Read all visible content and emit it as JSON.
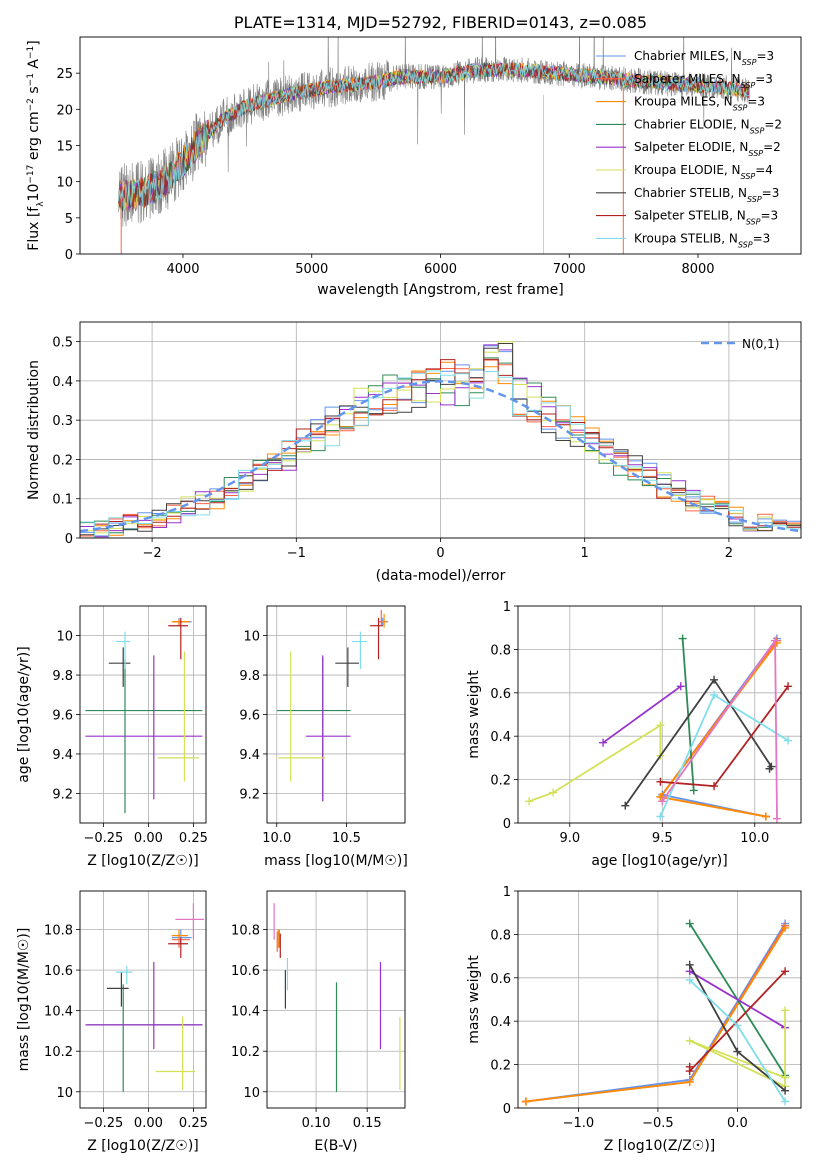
{
  "chart_data": [
    {
      "id": "spectrum",
      "type": "line",
      "title": "PLATE=1314, MJD=52792, FIBERID=0143, z=0.085",
      "xlabel": "wavelength [Angstrom, rest frame]",
      "ylabel": "Flux [f_λ10^-17 erg cm^-2 s^-1 A^-1]",
      "xlim": [
        3200,
        8800
      ],
      "ylim": [
        0,
        30
      ],
      "xticks": [
        4000,
        5000,
        6000,
        7000,
        8000
      ],
      "yticks": [
        0,
        5,
        10,
        15,
        20,
        25
      ],
      "grid": false,
      "legend_position": "top-right",
      "data_color": "#808080",
      "continuum_anchor": {
        "x": [
          3500,
          3700,
          3900,
          4100,
          4300,
          4500,
          4800,
          5100,
          5400,
          5700,
          6000,
          6300,
          6600,
          6900,
          7200,
          7500,
          7800,
          8100,
          8400
        ],
        "y": [
          8,
          8.5,
          10.5,
          15,
          18.5,
          20.5,
          22,
          23,
          23.5,
          24.5,
          24.5,
          25.5,
          25.5,
          25,
          24.5,
          24,
          23.5,
          23.2,
          22.5
        ]
      },
      "series": [
        {
          "name": "Chabrier MILES",
          "nssp": "3",
          "color": "#6495ed"
        },
        {
          "name": "Salpeter MILES",
          "nssp": "3",
          "color": "#ff6347"
        },
        {
          "name": "Kroupa MILES",
          "nssp": "3",
          "color": "#ff8c00"
        },
        {
          "name": "Chabrier ELODIE",
          "nssp": "2",
          "color": "#2e8b57"
        },
        {
          "name": "Salpeter ELODIE",
          "nssp": "2",
          "color": "#9932cc"
        },
        {
          "name": "Kroupa ELODIE",
          "nssp": "4",
          "color": "#d4e157"
        },
        {
          "name": "Chabrier STELIB",
          "nssp": "3",
          "color": "#404040"
        },
        {
          "name": "Salpeter STELIB",
          "nssp": "3",
          "color": "#b22222"
        },
        {
          "name": "Kroupa STELIB",
          "nssp": "3",
          "color": "#80deea"
        }
      ]
    },
    {
      "id": "residuals",
      "type": "line",
      "xlabel": "(data-model)/error",
      "ylabel": "Normed distribution",
      "xlim": [
        -2.5,
        2.5
      ],
      "ylim": [
        0,
        0.55
      ],
      "xticks": [
        -2,
        -1,
        0,
        1,
        2
      ],
      "yticks": [
        0.0,
        0.1,
        0.2,
        0.3,
        0.4,
        0.5
      ],
      "grid": true,
      "legend_position": "top-right",
      "reference_curve": {
        "name": "N(0,1)",
        "color": "#6495ed",
        "style": "dashed"
      },
      "bin_width": 0.1,
      "histograms": [
        {
          "color": "#6495ed",
          "phase": 0.0
        },
        {
          "color": "#ff6347",
          "phase": 1.3
        },
        {
          "color": "#ff8c00",
          "phase": 2.1
        },
        {
          "color": "#2e8b57",
          "phase": 3.7
        },
        {
          "color": "#9932cc",
          "phase": 4.4
        },
        {
          "color": "#d4e157",
          "phase": 5.2
        },
        {
          "color": "#404040",
          "phase": 6.1
        },
        {
          "color": "#b22222",
          "phase": 7.3
        },
        {
          "color": "#80deea",
          "phase": 8.6
        }
      ]
    },
    {
      "id": "age-vs-z",
      "type": "scatter",
      "xlabel": "Z [log10(Z/Z☉)]",
      "ylabel": "age [log10(age/yr)]",
      "xlim": [
        -0.38,
        0.32
      ],
      "ylim": [
        9.05,
        10.15
      ],
      "xticks": [
        -0.25,
        0.0,
        0.25
      ],
      "xtick_labels": [
        "−0.25",
        "0.00",
        "0.25"
      ],
      "yticks": [
        9.2,
        9.4,
        9.6,
        9.8,
        10.0
      ],
      "grid": true,
      "points": [
        {
          "color": "#6495ed",
          "x": 0.17,
          "y": 10.07,
          "xerr": [
            0.03,
            0.07
          ],
          "yerr": [
            0.02,
            0.02
          ]
        },
        {
          "color": "#ff6347",
          "x": 0.17,
          "y": 10.07,
          "xerr": [
            0.03,
            0.06
          ],
          "yerr": [
            0.02,
            0.01
          ]
        },
        {
          "color": "#ff8c00",
          "x": 0.17,
          "y": 10.07,
          "xerr": [
            0.04,
            0.06
          ],
          "yerr": [
            0.02,
            0.01
          ]
        },
        {
          "color": "#2e8b57",
          "x": -0.13,
          "y": 9.62,
          "xerr": [
            0.22,
            0.43
          ],
          "yerr": [
            0.52,
            0.26
          ]
        },
        {
          "color": "#9932cc",
          "x": 0.03,
          "y": 9.49,
          "xerr": [
            0.38,
            0.27
          ],
          "yerr": [
            0.32,
            0.41
          ]
        },
        {
          "color": "#d4e157",
          "x": 0.2,
          "y": 9.38,
          "xerr": [
            0.15,
            0.08
          ],
          "yerr": [
            0.12,
            0.54
          ]
        },
        {
          "color": "#404040",
          "x": -0.14,
          "y": 9.86,
          "xerr": [
            0.08,
            0.04
          ],
          "yerr": [
            0.12,
            0.08
          ]
        },
        {
          "color": "#b22222",
          "x": 0.18,
          "y": 10.05,
          "xerr": [
            0.07,
            0.04
          ],
          "yerr": [
            0.17,
            0.04
          ]
        },
        {
          "color": "#80deea",
          "x": -0.13,
          "y": 9.97,
          "xerr": [
            0.05,
            0.03
          ],
          "yerr": [
            0.14,
            0.05
          ]
        }
      ]
    },
    {
      "id": "age-vs-mass",
      "type": "scatter",
      "xlabel": "mass [log10(M/M☉)]",
      "ylabel": "",
      "xlim": [
        9.93,
        10.92
      ],
      "ylim": [
        9.05,
        10.15
      ],
      "xticks": [
        10.0,
        10.5
      ],
      "xtick_labels": [
        "10.0",
        "10.5"
      ],
      "yticks": [
        9.2,
        9.4,
        9.6,
        9.8,
        10.0
      ],
      "grid": true,
      "points": [
        {
          "color": "#6495ed",
          "x": 10.76,
          "y": 10.07,
          "xerr": [
            0.02,
            0.04
          ],
          "yerr": [
            0.02,
            0.02
          ]
        },
        {
          "color": "#ff6347",
          "x": 10.75,
          "y": 10.07,
          "xerr": [
            0.02,
            0.03
          ],
          "yerr": [
            0.02,
            0.06
          ]
        },
        {
          "color": "#ff8c00",
          "x": 10.77,
          "y": 10.07,
          "xerr": [
            0.01,
            0.02
          ],
          "yerr": [
            0.03,
            0.04
          ]
        },
        {
          "color": "#2e8b57",
          "x": 10.33,
          "y": 9.62,
          "xerr": [
            0.33,
            0.2
          ],
          "yerr": [
            0.46,
            0.27
          ]
        },
        {
          "color": "#9932cc",
          "x": 10.33,
          "y": 9.49,
          "xerr": [
            0.12,
            0.2
          ],
          "yerr": [
            0.33,
            0.41
          ]
        },
        {
          "color": "#d4e157",
          "x": 10.1,
          "y": 9.38,
          "xerr": [
            0.09,
            0.25
          ],
          "yerr": [
            0.12,
            0.54
          ]
        },
        {
          "color": "#404040",
          "x": 10.51,
          "y": 9.86,
          "xerr": [
            0.09,
            0.08
          ],
          "yerr": [
            0.12,
            0.08
          ]
        },
        {
          "color": "#b22222",
          "x": 10.73,
          "y": 10.05,
          "xerr": [
            0.06,
            0.03
          ],
          "yerr": [
            0.17,
            0.04
          ]
        },
        {
          "color": "#80deea",
          "x": 10.6,
          "y": 9.97,
          "xerr": [
            0.06,
            0.05
          ],
          "yerr": [
            0.14,
            0.05
          ]
        }
      ]
    },
    {
      "id": "weight-vs-age",
      "type": "line",
      "xlabel": "age [log10(age/yr)]",
      "ylabel": "mass weight",
      "xlim": [
        8.72,
        10.25
      ],
      "ylim": [
        0,
        1
      ],
      "xticks": [
        9.0,
        9.5,
        10.0
      ],
      "xtick_labels": [
        "9.0",
        "9.5",
        "10.0"
      ],
      "yticks": [
        0.0,
        0.2,
        0.4,
        0.6,
        0.8,
        1.0
      ],
      "grid": true,
      "series": [
        {
          "color": "#6495ed",
          "x": [
            10.12,
            9.5,
            10.06
          ],
          "y": [
            0.85,
            0.13,
            0.03
          ]
        },
        {
          "color": "#ff6347",
          "x": [
            10.12,
            9.49,
            10.06
          ],
          "y": [
            0.84,
            0.12,
            0.03
          ]
        },
        {
          "color": "#ff8c00",
          "x": [
            10.12,
            9.49,
            10.06
          ],
          "y": [
            0.83,
            0.12,
            0.03
          ]
        },
        {
          "color": "#2e8b57",
          "x": [
            9.61,
            9.67
          ],
          "y": [
            0.85,
            0.15
          ]
        },
        {
          "color": "#9932cc",
          "x": [
            9.18,
            9.6
          ],
          "y": [
            0.37,
            0.63
          ]
        },
        {
          "color": "#d4e157",
          "x": [
            8.78,
            8.91,
            9.49,
            9.49
          ],
          "y": [
            0.1,
            0.14,
            0.45,
            0.31
          ]
        },
        {
          "color": "#404040",
          "x": [
            9.3,
            9.78,
            10.09,
            10.08
          ],
          "y": [
            0.08,
            0.66,
            0.26,
            0.25
          ]
        },
        {
          "color": "#b22222",
          "x": [
            9.49,
            9.78,
            10.18
          ],
          "y": [
            0.19,
            0.17,
            0.63
          ]
        },
        {
          "color": "#80deea",
          "x": [
            9.49,
            9.78,
            10.18
          ],
          "y": [
            0.03,
            0.59,
            0.38
          ]
        },
        {
          "color": "#e377c2",
          "x": [
            9.5,
            10.11,
            10.12
          ],
          "y": [
            0.1,
            0.84,
            0.02
          ]
        }
      ]
    },
    {
      "id": "mass-vs-z",
      "type": "scatter",
      "xlabel": "Z [log10(Z/Z☉)]",
      "ylabel": "mass [log10(M/M☉)]",
      "xlim": [
        -0.38,
        0.32
      ],
      "ylim": [
        9.92,
        10.99
      ],
      "xticks": [
        -0.25,
        0.0,
        0.25
      ],
      "xtick_labels": [
        "−0.25",
        "0.00",
        "0.25"
      ],
      "yticks": [
        10.0,
        10.2,
        10.4,
        10.6,
        10.8
      ],
      "grid": true,
      "points": [
        {
          "color": "#6495ed",
          "x": 0.18,
          "y": 10.76,
          "xerr": [
            0.05,
            0.06
          ],
          "yerr": [
            0.03,
            0.04
          ]
        },
        {
          "color": "#ff6347",
          "x": 0.17,
          "y": 10.75,
          "xerr": [
            0.04,
            0.06
          ],
          "yerr": [
            0.04,
            0.03
          ]
        },
        {
          "color": "#ff8c00",
          "x": 0.17,
          "y": 10.77,
          "xerr": [
            0.04,
            0.05
          ],
          "yerr": [
            0.02,
            0.03
          ]
        },
        {
          "color": "#2e8b57",
          "x": -0.14,
          "y": 10.33,
          "xerr": [
            0.2,
            0.44
          ],
          "yerr": [
            0.33,
            0.2
          ]
        },
        {
          "color": "#9932cc",
          "x": 0.03,
          "y": 10.33,
          "xerr": [
            0.38,
            0.27
          ],
          "yerr": [
            0.12,
            0.31
          ]
        },
        {
          "color": "#d4e157",
          "x": 0.19,
          "y": 10.1,
          "xerr": [
            0.15,
            0.07
          ],
          "yerr": [
            0.09,
            0.27
          ]
        },
        {
          "color": "#404040",
          "x": -0.15,
          "y": 10.51,
          "xerr": [
            0.08,
            0.04
          ],
          "yerr": [
            0.09,
            0.08
          ]
        },
        {
          "color": "#b22222",
          "x": 0.18,
          "y": 10.73,
          "xerr": [
            0.07,
            0.04
          ],
          "yerr": [
            0.07,
            0.03
          ]
        },
        {
          "color": "#80deea",
          "x": -0.12,
          "y": 10.59,
          "xerr": [
            0.06,
            0.03
          ],
          "yerr": [
            0.06,
            0.03
          ]
        },
        {
          "color": "#e377c2",
          "x": 0.25,
          "y": 10.85,
          "xerr": [
            0.1,
            0.06
          ],
          "yerr": [
            0.1,
            0.08
          ]
        }
      ]
    },
    {
      "id": "mass-vs-ebv",
      "type": "scatter",
      "xlabel": "E(B-V)",
      "ylabel": "",
      "xlim": [
        0.052,
        0.187
      ],
      "ylim": [
        9.92,
        10.99
      ],
      "xticks": [
        0.1,
        0.15
      ],
      "xtick_labels": [
        "0.10",
        "0.15"
      ],
      "yticks": [
        10.0,
        10.2,
        10.4,
        10.6,
        10.8
      ],
      "grid": true,
      "points": [
        {
          "color": "#6495ed",
          "x": 0.064,
          "y": 10.76,
          "yerr": [
            0.05,
            0.04
          ]
        },
        {
          "color": "#ff6347",
          "x": 0.062,
          "y": 10.75,
          "yerr": [
            0.06,
            0.04
          ]
        },
        {
          "color": "#ff8c00",
          "x": 0.063,
          "y": 10.76,
          "yerr": [
            0.05,
            0.04
          ]
        },
        {
          "color": "#2e8b57",
          "x": 0.12,
          "y": 10.27,
          "yerr": [
            0.27,
            0.27
          ]
        },
        {
          "color": "#9932cc",
          "x": 0.163,
          "y": 10.42,
          "yerr": [
            0.21,
            0.22
          ]
        },
        {
          "color": "#d4e157",
          "x": 0.182,
          "y": 10.19,
          "yerr": [
            0.18,
            0.18
          ]
        },
        {
          "color": "#404040",
          "x": 0.07,
          "y": 10.51,
          "yerr": [
            0.1,
            0.09
          ]
        },
        {
          "color": "#b22222",
          "x": 0.065,
          "y": 10.72,
          "yerr": [
            0.06,
            0.06
          ]
        },
        {
          "color": "#80deea",
          "x": 0.072,
          "y": 10.58,
          "yerr": [
            0.08,
            0.08
          ]
        },
        {
          "color": "#e377c2",
          "x": 0.059,
          "y": 10.84,
          "yerr": [
            0.09,
            0.09
          ]
        }
      ]
    },
    {
      "id": "weight-vs-z",
      "type": "line",
      "xlabel": "Z [log10(Z/Z☉)]",
      "ylabel": "mass weight",
      "xlim": [
        -1.38,
        0.4
      ],
      "ylim": [
        0,
        1
      ],
      "xticks": [
        -1.0,
        -0.5,
        0.0
      ],
      "xtick_labels": [
        "−1.0",
        "−0.5",
        "0.0"
      ],
      "yticks": [
        0.0,
        0.2,
        0.4,
        0.6,
        0.8,
        1.0
      ],
      "grid": true,
      "series": [
        {
          "color": "#6495ed",
          "x": [
            0.3,
            -0.3,
            -1.33
          ],
          "y": [
            0.85,
            0.13,
            0.03
          ]
        },
        {
          "color": "#ff6347",
          "x": [
            0.3,
            -0.3,
            -1.33
          ],
          "y": [
            0.84,
            0.12,
            0.03
          ]
        },
        {
          "color": "#ff8c00",
          "x": [
            0.3,
            -0.3,
            -1.33
          ],
          "y": [
            0.83,
            0.12,
            0.03
          ]
        },
        {
          "color": "#2e8b57",
          "x": [
            -0.3,
            0.3
          ],
          "y": [
            0.85,
            0.15
          ]
        },
        {
          "color": "#9932cc",
          "x": [
            -0.3,
            0.3
          ],
          "y": [
            0.63,
            0.37
          ]
        },
        {
          "color": "#d4e157",
          "x": [
            0.3,
            0.3,
            -0.3,
            0.3
          ],
          "y": [
            0.45,
            0.1,
            0.31,
            0.14
          ]
        },
        {
          "color": "#404040",
          "x": [
            -0.3,
            0.0,
            0.3
          ],
          "y": [
            0.66,
            0.26,
            0.08
          ]
        },
        {
          "color": "#b22222",
          "x": [
            -0.3,
            -0.3,
            0.3
          ],
          "y": [
            0.19,
            0.17,
            0.63
          ]
        },
        {
          "color": "#80deea",
          "x": [
            -0.3,
            0.0,
            0.3
          ],
          "y": [
            0.59,
            0.38,
            0.03
          ]
        }
      ]
    }
  ]
}
